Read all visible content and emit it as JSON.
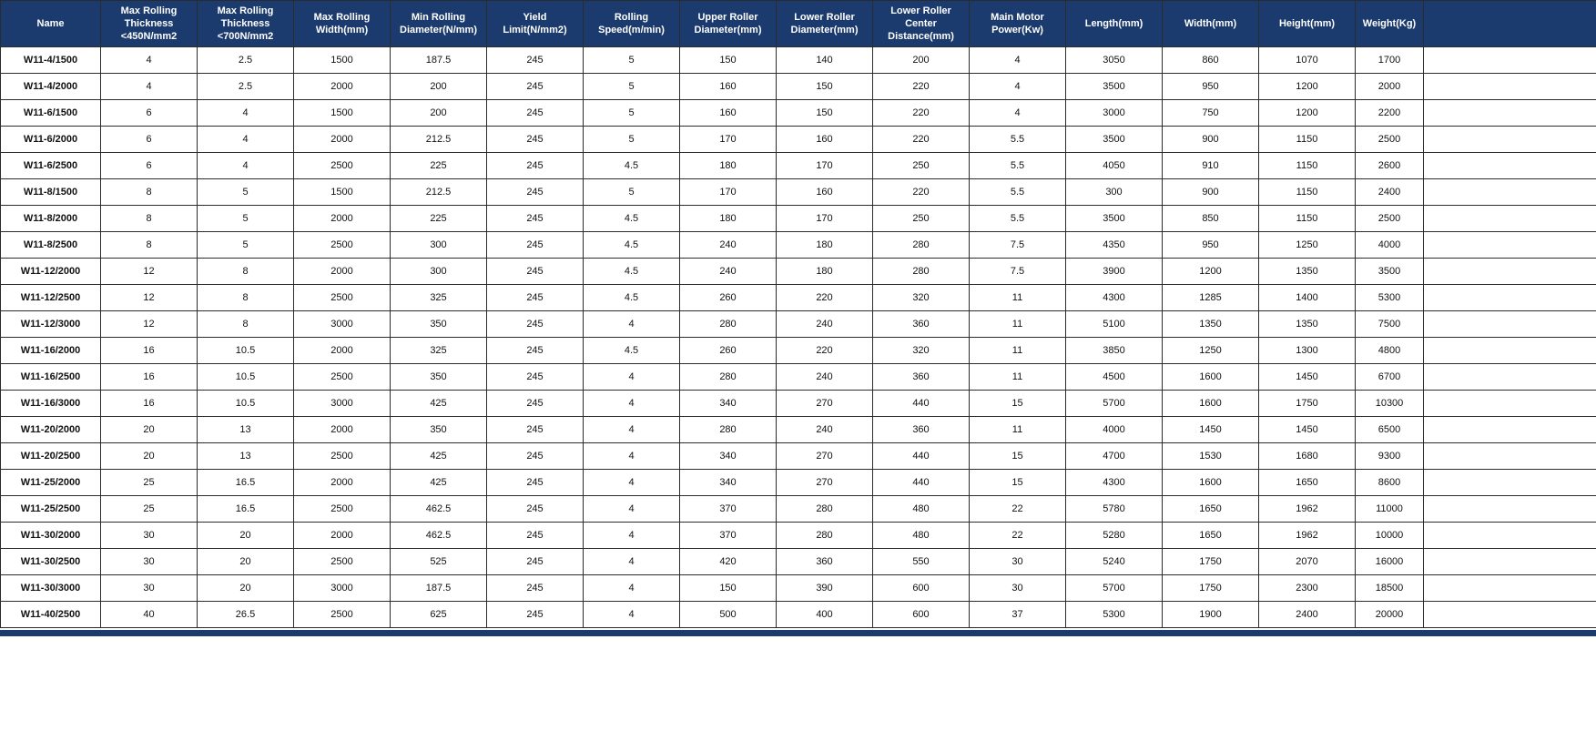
{
  "table": {
    "columns": [
      {
        "key": "name",
        "label": "Name"
      },
      {
        "key": "max-thickness-450",
        "label": "Max Rolling Thickness <450N/mm2"
      },
      {
        "key": "max-thickness-700",
        "label": "Max Rolling Thickness <700N/mm2"
      },
      {
        "key": "max-rolling-width",
        "label": "Max Rolling Width(mm)"
      },
      {
        "key": "min-rolling-diameter",
        "label": "Min Rolling Diameter(N/mm)"
      },
      {
        "key": "yield-limit",
        "label": "Yield Limit(N/mm2)"
      },
      {
        "key": "rolling-speed",
        "label": "Rolling Speed(m/min)"
      },
      {
        "key": "upper-roller-diameter",
        "label": "Upper Roller Diameter(mm)"
      },
      {
        "key": "lower-roller-diameter",
        "label": "Lower Roller Diameter(mm)"
      },
      {
        "key": "lower-roller-center-distance",
        "label": "Lower Roller Center Distance(mm)"
      },
      {
        "key": "main-motor-power",
        "label": "Main Motor Power(Kw)"
      },
      {
        "key": "length",
        "label": "Length(mm)"
      },
      {
        "key": "width",
        "label": "Width(mm)"
      },
      {
        "key": "height",
        "label": "Height(mm)"
      },
      {
        "key": "weight",
        "label": "Weight(Kg)"
      }
    ],
    "rows": [
      [
        "W11-4/1500",
        "4",
        "2.5",
        "1500",
        "187.5",
        "245",
        "5",
        "150",
        "140",
        "200",
        "4",
        "3050",
        "860",
        "1070",
        "1700"
      ],
      [
        "W11-4/2000",
        "4",
        "2.5",
        "2000",
        "200",
        "245",
        "5",
        "160",
        "150",
        "220",
        "4",
        "3500",
        "950",
        "1200",
        "2000"
      ],
      [
        "W11-6/1500",
        "6",
        "4",
        "1500",
        "200",
        "245",
        "5",
        "160",
        "150",
        "220",
        "4",
        "3000",
        "750",
        "1200",
        "2200"
      ],
      [
        "W11-6/2000",
        "6",
        "4",
        "2000",
        "212.5",
        "245",
        "5",
        "170",
        "160",
        "220",
        "5.5",
        "3500",
        "900",
        "1150",
        "2500"
      ],
      [
        "W11-6/2500",
        "6",
        "4",
        "2500",
        "225",
        "245",
        "4.5",
        "180",
        "170",
        "250",
        "5.5",
        "4050",
        "910",
        "1150",
        "2600"
      ],
      [
        "W11-8/1500",
        "8",
        "5",
        "1500",
        "212.5",
        "245",
        "5",
        "170",
        "160",
        "220",
        "5.5",
        "300",
        "900",
        "1150",
        "2400"
      ],
      [
        "W11-8/2000",
        "8",
        "5",
        "2000",
        "225",
        "245",
        "4.5",
        "180",
        "170",
        "250",
        "5.5",
        "3500",
        "850",
        "1150",
        "2500"
      ],
      [
        "W11-8/2500",
        "8",
        "5",
        "2500",
        "300",
        "245",
        "4.5",
        "240",
        "180",
        "280",
        "7.5",
        "4350",
        "950",
        "1250",
        "4000"
      ],
      [
        "W11-12/2000",
        "12",
        "8",
        "2000",
        "300",
        "245",
        "4.5",
        "240",
        "180",
        "280",
        "7.5",
        "3900",
        "1200",
        "1350",
        "3500"
      ],
      [
        "W11-12/2500",
        "12",
        "8",
        "2500",
        "325",
        "245",
        "4.5",
        "260",
        "220",
        "320",
        "11",
        "4300",
        "1285",
        "1400",
        "5300"
      ],
      [
        "W11-12/3000",
        "12",
        "8",
        "3000",
        "350",
        "245",
        "4",
        "280",
        "240",
        "360",
        "11",
        "5100",
        "1350",
        "1350",
        "7500"
      ],
      [
        "W11-16/2000",
        "16",
        "10.5",
        "2000",
        "325",
        "245",
        "4.5",
        "260",
        "220",
        "320",
        "11",
        "3850",
        "1250",
        "1300",
        "4800"
      ],
      [
        "W11-16/2500",
        "16",
        "10.5",
        "2500",
        "350",
        "245",
        "4",
        "280",
        "240",
        "360",
        "11",
        "4500",
        "1600",
        "1450",
        "6700"
      ],
      [
        "W11-16/3000",
        "16",
        "10.5",
        "3000",
        "425",
        "245",
        "4",
        "340",
        "270",
        "440",
        "15",
        "5700",
        "1600",
        "1750",
        "10300"
      ],
      [
        "W11-20/2000",
        "20",
        "13",
        "2000",
        "350",
        "245",
        "4",
        "280",
        "240",
        "360",
        "11",
        "4000",
        "1450",
        "1450",
        "6500"
      ],
      [
        "W11-20/2500",
        "20",
        "13",
        "2500",
        "425",
        "245",
        "4",
        "340",
        "270",
        "440",
        "15",
        "4700",
        "1530",
        "1680",
        "9300"
      ],
      [
        "W11-25/2000",
        "25",
        "16.5",
        "2000",
        "425",
        "245",
        "4",
        "340",
        "270",
        "440",
        "15",
        "4300",
        "1600",
        "1650",
        "8600"
      ],
      [
        "W11-25/2500",
        "25",
        "16.5",
        "2500",
        "462.5",
        "245",
        "4",
        "370",
        "280",
        "480",
        "22",
        "5780",
        "1650",
        "1962",
        "11000"
      ],
      [
        "W11-30/2000",
        "30",
        "20",
        "2000",
        "462.5",
        "245",
        "4",
        "370",
        "280",
        "480",
        "22",
        "5280",
        "1650",
        "1962",
        "10000"
      ],
      [
        "W11-30/2500",
        "30",
        "20",
        "2500",
        "525",
        "245",
        "4",
        "420",
        "360",
        "550",
        "30",
        "5240",
        "1750",
        "2070",
        "16000"
      ],
      [
        "W11-30/3000",
        "30",
        "20",
        "3000",
        "187.5",
        "245",
        "4",
        "150",
        "390",
        "600",
        "30",
        "5700",
        "1750",
        "2300",
        "18500"
      ],
      [
        "W11-40/2500",
        "40",
        "26.5",
        "2500",
        "625",
        "245",
        "4",
        "500",
        "400",
        "600",
        "37",
        "5300",
        "1900",
        "2400",
        "20000"
      ]
    ]
  },
  "colors": {
    "header_bg": "#1b3a6d",
    "header_text": "#ffffff",
    "body_bg": "#ffffff",
    "body_text": "#111111",
    "border": "#2b2b2b"
  }
}
